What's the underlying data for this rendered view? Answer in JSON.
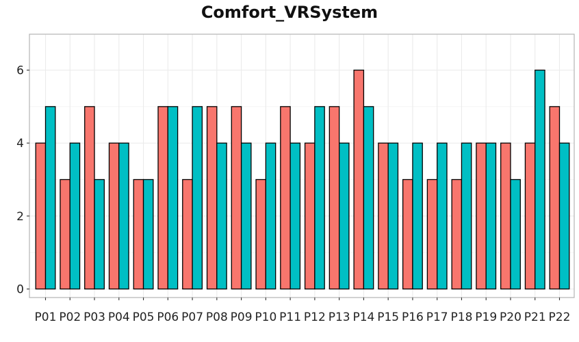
{
  "chart_data": {
    "type": "bar",
    "title": "Comfort_VRSystem",
    "xlabel": "",
    "ylabel": "",
    "categories": [
      "P01",
      "P02",
      "P03",
      "P04",
      "P05",
      "P06",
      "P07",
      "P08",
      "P09",
      "P10",
      "P11",
      "P12",
      "P13",
      "P14",
      "P15",
      "P16",
      "P17",
      "P18",
      "P19",
      "P20",
      "P21",
      "P22"
    ],
    "series": [
      {
        "values": [
          4,
          3,
          5,
          4,
          3,
          5,
          3,
          5,
          5,
          3,
          5,
          4,
          5,
          6,
          4,
          3,
          3,
          3,
          4,
          4,
          4,
          5
        ],
        "color": "#F8766D"
      },
      {
        "values": [
          5,
          4,
          3,
          4,
          3,
          5,
          5,
          4,
          4,
          4,
          4,
          5,
          4,
          5,
          4,
          4,
          4,
          4,
          4,
          3,
          6,
          4
        ],
        "color": "#00BFC4"
      }
    ],
    "ylim": [
      0,
      6.9
    ],
    "yticks": [
      0,
      2,
      4,
      6
    ],
    "grid": true,
    "legend": "none"
  }
}
